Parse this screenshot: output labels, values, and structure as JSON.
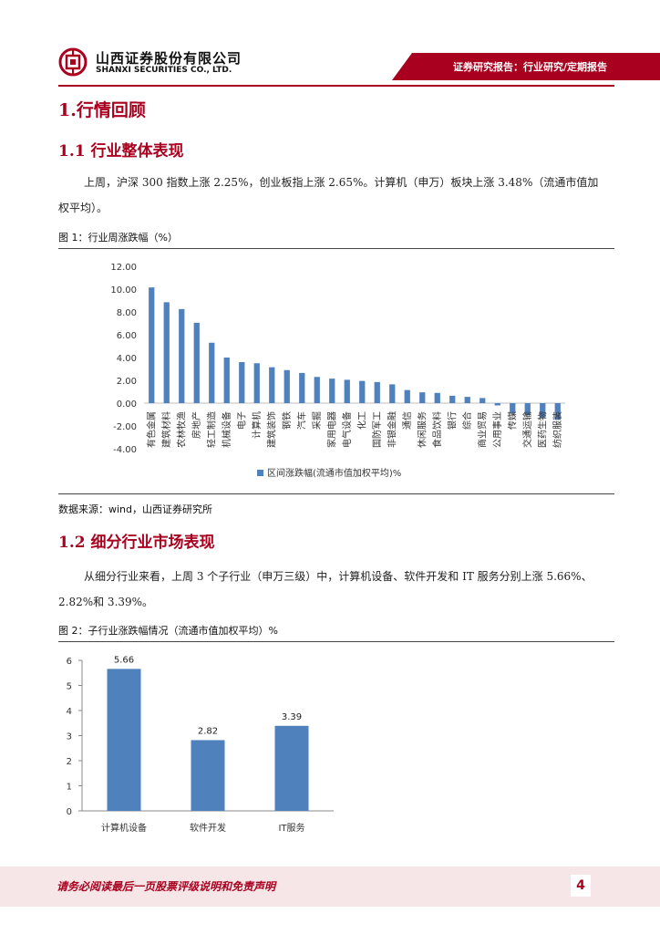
{
  "header": {
    "company_cn": "山西证券股份有限公司",
    "company_en": "SHANXI SECURITIES CO., LTD.",
    "report_type": "证券研究报告：行业研究/定期报告",
    "brand_color": "#a9001f"
  },
  "section1": {
    "title": "1.行情回顾",
    "sub1_title": "1.1 行业整体表现",
    "sub1_para_line1": "上周，沪深 300 指数上涨 2.25%，创业板指上涨 2.65%。计算机（申万）板块上涨 3.48%（流通市值加",
    "sub1_para_line2": "权平均）。",
    "fig1_title": "图 1：行业周涨跌幅（%）",
    "fig1_source": "数据来源：wind，山西证券研究所",
    "sub2_title": "1.2 细分行业市场表现",
    "sub2_para_line1": "从细分行业来看，上周 3 个子行业（申万三级）中，计算机设备、软件开发和 IT 服务分别上涨 5.66%、",
    "sub2_para_line2": "2.82%和 3.39%。",
    "fig2_title": "图 2：子行业涨跌幅情况（流通市值加权平均）%"
  },
  "chart_data": [
    {
      "type": "bar",
      "title": "",
      "categories": [
        "有色金属",
        "建筑材料",
        "农林牧渔",
        "房地产",
        "轻工制造",
        "机械设备",
        "电子",
        "计算机",
        "建筑装饰",
        "钢铁",
        "汽车",
        "采掘",
        "家用电器",
        "电气设备",
        "化工",
        "国防军工",
        "非银金融",
        "通信",
        "休闲服务",
        "食品饮料",
        "银行",
        "综合",
        "商业贸易",
        "公用事业",
        "传媒",
        "交通运输",
        "医药生物",
        "纺织服装"
      ],
      "series": [
        {
          "name": "区间涨跌幅(流通市值加权平均)%",
          "color": "#4f81bd",
          "values": [
            10.15,
            8.85,
            8.25,
            7.05,
            5.3,
            4.0,
            3.6,
            3.5,
            3.15,
            2.9,
            2.65,
            2.3,
            2.15,
            2.05,
            1.95,
            1.85,
            1.65,
            1.15,
            0.95,
            0.9,
            0.65,
            0.55,
            0.45,
            -0.2,
            -0.9,
            -1.05,
            -1.3,
            -1.45
          ]
        }
      ],
      "yticks": [
        "12.00",
        "10.00",
        "8.00",
        "6.00",
        "4.00",
        "2.00",
        "0.00",
        "-2.00",
        "-4.00"
      ],
      "ylim": [
        -4,
        12
      ],
      "legend": "bottom",
      "grid": false
    },
    {
      "type": "bar",
      "title": "",
      "categories": [
        "计算机设备",
        "软件开发",
        "IT服务"
      ],
      "values": [
        5.66,
        2.82,
        3.39
      ],
      "data_labels": [
        "5.66",
        "2.82",
        "3.39"
      ],
      "yticks": [
        "6",
        "5",
        "4",
        "3",
        "2",
        "1",
        "0"
      ],
      "ylim": [
        0,
        6
      ],
      "color": "#4f81bd",
      "grid": false
    }
  ],
  "footer": {
    "disclaimer": "请务必阅读最后一页股票评级说明和免责声明",
    "page_number": "4"
  }
}
